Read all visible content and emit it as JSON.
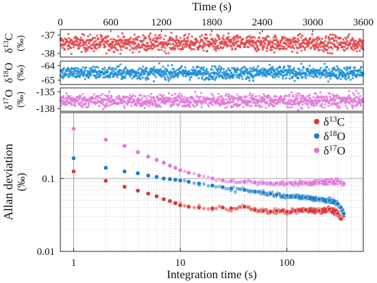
{
  "chart_data": [
    {
      "type": "scatter",
      "panel": "time-series-top",
      "xlabel": "Time (s)",
      "xlim": [
        0,
        3600
      ],
      "x_ticks": [
        "0",
        "600",
        "1200",
        "1800",
        "2400",
        "3000",
        "3600"
      ],
      "x_tick_values": [
        0,
        600,
        1200,
        1800,
        2400,
        3000,
        3600
      ],
      "ylabel": "δ13C (‰)",
      "ylabel_main": "δ",
      "ylabel_sup": "13",
      "ylabel_letter": "C",
      "ylabel_unit": "(‰)",
      "y_ticks": [
        "-37",
        "-38"
      ],
      "y_tick_values": [
        -37,
        -38
      ],
      "ylim": [
        -38.2,
        -36.7
      ],
      "series": [
        {
          "color": "#e0464b",
          "mean": -37.45,
          "spread": 0.22,
          "n": 1100
        }
      ]
    },
    {
      "type": "scatter",
      "panel": "time-series-middle",
      "xlim": [
        0,
        3600
      ],
      "ylabel": "δ18O (‰)",
      "ylabel_main": "δ",
      "ylabel_sup": "18",
      "ylabel_letter": "O",
      "ylabel_unit": "(‰)",
      "y_ticks": [
        "-64",
        "-65"
      ],
      "y_tick_values": [
        -64,
        -65
      ],
      "ylim": [
        -65.3,
        -63.7
      ],
      "series": [
        {
          "color": "#1f8fd6",
          "mean": -64.5,
          "spread": 0.22,
          "n": 1100
        }
      ]
    },
    {
      "type": "scatter",
      "panel": "time-series-bottom",
      "xlim": [
        0,
        3600
      ],
      "ylabel": "δ17O (‰)",
      "ylabel_main": "δ",
      "ylabel_sup": "17",
      "ylabel_letter": "O",
      "ylabel_unit": "(‰)",
      "y_ticks": [
        "-135",
        "-138"
      ],
      "y_tick_values": [
        -135,
        -138
      ],
      "ylim": [
        -138.5,
        -134.3
      ],
      "series": [
        {
          "color": "#e07ad9",
          "mean": -136.6,
          "spread": 0.6,
          "n": 1100
        }
      ]
    },
    {
      "type": "scatter",
      "panel": "allan-deviation",
      "xscale": "log",
      "yscale": "log",
      "xlabel": "Integration time (s)",
      "ylabel": "Allan deviation (‰)",
      "ylabel_line1": "Allan deviation",
      "ylabel_line2": "(‰)",
      "xlim": [
        0.75,
        520
      ],
      "ylim": [
        0.01,
        0.8
      ],
      "x_ticks": [
        "1",
        "10",
        "100"
      ],
      "x_tick_values": [
        1,
        10,
        100
      ],
      "y_ticks": [
        "0.01",
        "0.1"
      ],
      "y_tick_values": [
        0.01,
        0.1
      ],
      "grid": true,
      "legend_position": "top-right",
      "series": [
        {
          "name": "δ13C",
          "name_main": "δ",
          "name_sup": "13",
          "name_letter": "C",
          "color": "#d9383a",
          "x": [
            1,
            2,
            3,
            4,
            5,
            6,
            7,
            8,
            9,
            10,
            12,
            15,
            20,
            25,
            30,
            40,
            50,
            60,
            70,
            80,
            100,
            120,
            150,
            200,
            250,
            300,
            320,
            340
          ],
          "y": [
            0.125,
            0.093,
            0.077,
            0.068,
            0.062,
            0.057,
            0.052,
            0.049,
            0.046,
            0.043,
            0.041,
            0.04,
            0.039,
            0.04,
            0.039,
            0.041,
            0.037,
            0.036,
            0.035,
            0.036,
            0.035,
            0.036,
            0.037,
            0.036,
            0.038,
            0.033,
            0.028,
            0.031
          ]
        },
        {
          "name": "δ18O",
          "name_main": "δ",
          "name_sup": "18",
          "name_letter": "O",
          "color": "#1e7fc9",
          "x": [
            1,
            2,
            3,
            4,
            5,
            6,
            7,
            8,
            9,
            10,
            12,
            15,
            20,
            25,
            30,
            40,
            50,
            60,
            70,
            80,
            100,
            120,
            150,
            200,
            250,
            300,
            320,
            340
          ],
          "y": [
            0.19,
            0.14,
            0.125,
            0.118,
            0.11,
            0.105,
            0.1,
            0.098,
            0.096,
            0.094,
            0.09,
            0.085,
            0.08,
            0.076,
            0.073,
            0.07,
            0.066,
            0.064,
            0.062,
            0.06,
            0.058,
            0.056,
            0.055,
            0.052,
            0.05,
            0.045,
            0.04,
            0.033
          ]
        },
        {
          "name": "δ17O",
          "name_main": "δ",
          "name_sup": "17",
          "name_letter": "O",
          "color": "#e07ad9",
          "x": [
            1,
            2,
            3,
            4,
            5,
            6,
            7,
            8,
            9,
            10,
            12,
            15,
            20,
            25,
            30,
            40,
            50,
            60,
            70,
            80,
            100,
            120,
            150,
            200,
            250,
            300,
            320,
            340
          ],
          "y": [
            0.48,
            0.34,
            0.28,
            0.23,
            0.2,
            0.18,
            0.165,
            0.15,
            0.14,
            0.13,
            0.12,
            0.11,
            0.1,
            0.095,
            0.092,
            0.09,
            0.088,
            0.087,
            0.086,
            0.086,
            0.085,
            0.086,
            0.087,
            0.088,
            0.09,
            0.092,
            0.088,
            0.085
          ]
        }
      ]
    }
  ]
}
